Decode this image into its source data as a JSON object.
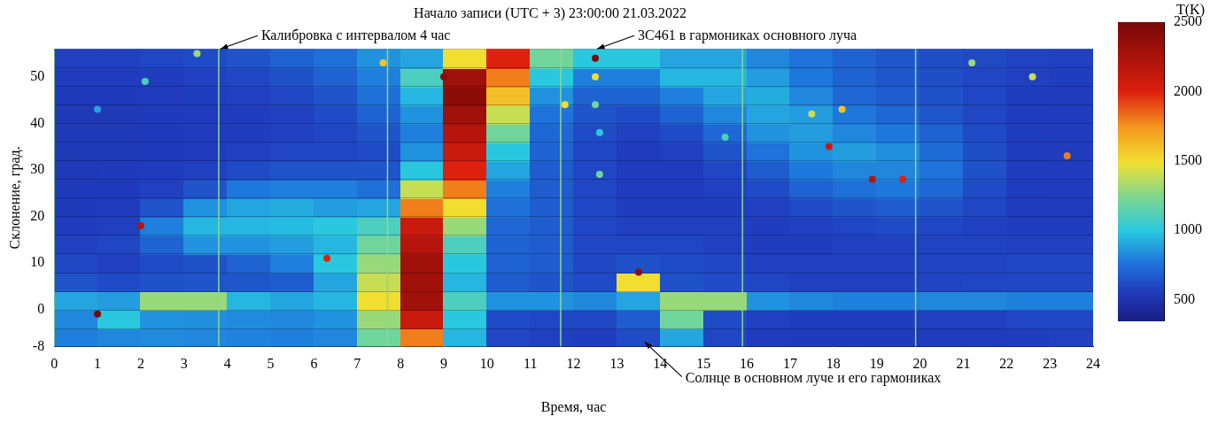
{
  "chart_data": {
    "type": "heatmap",
    "title": "Начало записи (UTC + 3) 23:00:00 21.03.2022",
    "x_label": "Время, час",
    "y_label": "Склонение, град.",
    "xlim": [
      0,
      24
    ],
    "xticks": [
      0,
      1,
      2,
      3,
      4,
      5,
      6,
      7,
      8,
      9,
      10,
      11,
      12,
      13,
      14,
      15,
      16,
      17,
      18,
      19,
      20,
      21,
      22,
      23,
      24
    ],
    "ylim": [
      -8,
      56
    ],
    "yticks": [
      -8,
      0,
      10,
      20,
      30,
      40,
      50
    ],
    "grid": false,
    "time_bins": [
      0,
      1,
      2,
      3,
      4,
      5,
      6,
      7,
      8,
      9,
      10,
      11,
      12,
      13,
      14,
      15,
      16,
      17,
      18,
      19,
      20,
      21,
      22,
      23,
      24
    ],
    "declination_bins": [
      -8,
      -4,
      0,
      4,
      8,
      12,
      16,
      20,
      24,
      28,
      32,
      36,
      40,
      44,
      48,
      52,
      56
    ],
    "cells": [
      [
        800,
        820,
        830,
        820,
        810,
        800,
        820,
        1200,
        1800,
        950,
        600,
        580,
        570,
        620,
        900,
        600,
        560,
        550,
        550,
        550,
        560,
        560,
        570,
        580
      ],
      [
        820,
        1000,
        850,
        840,
        830,
        820,
        850,
        1300,
        2100,
        1000,
        620,
        600,
        600,
        680,
        1200,
        620,
        580,
        570,
        570,
        570,
        580,
        580,
        600,
        600
      ],
      [
        900,
        880,
        1300,
        1300,
        950,
        900,
        950,
        1500,
        2300,
        1100,
        850,
        850,
        820,
        900,
        1300,
        1300,
        850,
        820,
        800,
        800,
        820,
        820,
        800,
        800
      ],
      [
        650,
        620,
        640,
        650,
        660,
        680,
        900,
        1400,
        2300,
        950,
        680,
        650,
        620,
        1500,
        640,
        620,
        600,
        580,
        580,
        580,
        590,
        600,
        600,
        600
      ],
      [
        600,
        580,
        620,
        640,
        700,
        800,
        1000,
        1300,
        2300,
        1000,
        700,
        680,
        600,
        640,
        620,
        600,
        580,
        580,
        580,
        580,
        590,
        590,
        600,
        600
      ],
      [
        580,
        600,
        700,
        850,
        850,
        880,
        950,
        1200,
        2200,
        1100,
        700,
        680,
        600,
        600,
        600,
        580,
        570,
        570,
        580,
        580,
        590,
        590,
        580,
        580
      ],
      [
        560,
        580,
        800,
        950,
        950,
        960,
        1000,
        1100,
        2100,
        1300,
        720,
        680,
        600,
        580,
        580,
        580,
        570,
        580,
        600,
        620,
        600,
        580,
        570,
        570
      ],
      [
        550,
        560,
        650,
        850,
        900,
        920,
        880,
        900,
        1800,
        1500,
        750,
        680,
        600,
        570,
        570,
        570,
        580,
        620,
        650,
        680,
        650,
        600,
        570,
        560
      ],
      [
        550,
        550,
        580,
        650,
        780,
        800,
        800,
        750,
        1400,
        1800,
        800,
        680,
        600,
        560,
        560,
        580,
        620,
        700,
        750,
        780,
        720,
        620,
        570,
        560
      ],
      [
        540,
        550,
        560,
        580,
        620,
        650,
        650,
        650,
        1000,
        2000,
        900,
        680,
        600,
        560,
        560,
        600,
        680,
        780,
        820,
        820,
        760,
        640,
        570,
        560
      ],
      [
        540,
        540,
        550,
        560,
        580,
        600,
        600,
        620,
        850,
        2100,
        1000,
        700,
        600,
        560,
        580,
        650,
        760,
        850,
        880,
        840,
        740,
        630,
        570,
        560
      ],
      [
        540,
        540,
        550,
        560,
        570,
        580,
        600,
        650,
        800,
        2200,
        1200,
        720,
        620,
        580,
        620,
        720,
        850,
        880,
        820,
        780,
        700,
        620,
        570,
        560
      ],
      [
        540,
        540,
        550,
        560,
        570,
        580,
        620,
        700,
        850,
        2300,
        1400,
        760,
        650,
        620,
        700,
        820,
        900,
        880,
        780,
        720,
        660,
        600,
        570,
        560
      ],
      [
        550,
        550,
        560,
        570,
        580,
        600,
        650,
        750,
        950,
        2400,
        1600,
        850,
        700,
        700,
        800,
        900,
        920,
        820,
        720,
        680,
        640,
        600,
        570,
        560
      ],
      [
        560,
        560,
        570,
        580,
        600,
        640,
        700,
        800,
        1100,
        2300,
        1800,
        1000,
        800,
        800,
        950,
        950,
        880,
        780,
        700,
        660,
        630,
        600,
        580,
        570
      ],
      [
        580,
        580,
        600,
        620,
        650,
        700,
        750,
        850,
        900,
        1500,
        2000,
        1200,
        1000,
        1000,
        900,
        900,
        820,
        760,
        700,
        660,
        630,
        610,
        590,
        580
      ]
    ],
    "sources": [
      {
        "x": 1.0,
        "y": -1,
        "T": 2500
      },
      {
        "x": 2.0,
        "y": 18,
        "T": 2200
      },
      {
        "x": 12.5,
        "y": 54,
        "T": 2500
      },
      {
        "x": 12.5,
        "y": 50,
        "T": 1500
      },
      {
        "x": 12.5,
        "y": 44,
        "T": 1200
      },
      {
        "x": 12.6,
        "y": 38,
        "T": 1000
      },
      {
        "x": 12.6,
        "y": 29,
        "T": 1200
      },
      {
        "x": 13.5,
        "y": 8,
        "T": 2400
      },
      {
        "x": 18.9,
        "y": 28,
        "T": 2200
      },
      {
        "x": 19.6,
        "y": 28,
        "T": 2000
      },
      {
        "x": 17.9,
        "y": 35,
        "T": 2100
      },
      {
        "x": 6.3,
        "y": 11,
        "T": 2000
      },
      {
        "x": 9.0,
        "y": 50,
        "T": 2400
      },
      {
        "x": 3.3,
        "y": 55,
        "T": 1300
      },
      {
        "x": 7.6,
        "y": 53,
        "T": 1600
      },
      {
        "x": 23.4,
        "y": 33,
        "T": 1800
      },
      {
        "x": 21.2,
        "y": 53,
        "T": 1300
      },
      {
        "x": 22.6,
        "y": 50,
        "T": 1400
      },
      {
        "x": 15.5,
        "y": 37,
        "T": 1100
      },
      {
        "x": 17.5,
        "y": 42,
        "T": 1400
      },
      {
        "x": 18.2,
        "y": 43,
        "T": 1600
      },
      {
        "x": 2.1,
        "y": 49,
        "T": 1100
      },
      {
        "x": 1.0,
        "y": 43,
        "T": 900
      },
      {
        "x": 11.8,
        "y": 44,
        "T": 1500
      }
    ],
    "calibration_lines": {
      "x": [
        0,
        3.8,
        7.7,
        11.7,
        15.9,
        19.9
      ],
      "color": "#8fd68f"
    },
    "annotations": [
      {
        "text": "Калибровка с интервалом 4 час",
        "x": 3.8,
        "y": 56
      },
      {
        "text": "3C461 в гармониках основного луча",
        "x": 12.5,
        "y": 56
      },
      {
        "text": "Солнце в основном луче и его гармониках",
        "x": 13.6,
        "y": -7
      }
    ],
    "colorbar": {
      "title": "T(K)",
      "range": [
        350,
        2500
      ],
      "ticks": [
        500,
        1000,
        1500,
        2000,
        2500
      ]
    }
  }
}
